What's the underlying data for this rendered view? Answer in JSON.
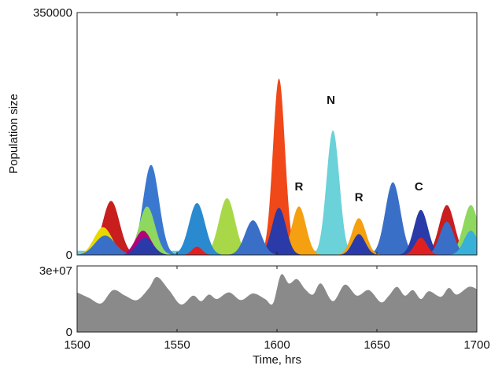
{
  "chart_data": [
    {
      "type": "area",
      "stacked": true,
      "ylabel": "Population size",
      "xlim": [
        1500,
        1700
      ],
      "ylim": [
        0,
        350000
      ],
      "y_ticks": [
        "350000",
        "0"
      ],
      "grid": false,
      "annotations": [
        {
          "text": "R",
          "x": 1611,
          "y": 93000
        },
        {
          "text": "N",
          "x": 1627,
          "y": 218000
        },
        {
          "text": "R",
          "x": 1641,
          "y": 78000
        },
        {
          "text": "C",
          "x": 1671,
          "y": 93000
        }
      ],
      "peaks": [
        {
          "color": "#c81e1e",
          "x": 1517,
          "height": 78000,
          "width": 4.2
        },
        {
          "color": "#e8d800",
          "x": 1513,
          "height": 40000,
          "width": 4.5
        },
        {
          "color": "#3a6fc8",
          "x": 1514,
          "height": 28000,
          "width": 5.0
        },
        {
          "color": "#3a78d0",
          "x": 1537,
          "height": 130000,
          "width": 4.0
        },
        {
          "color": "#8fd860",
          "x": 1535,
          "height": 70000,
          "width": 4.0
        },
        {
          "color": "#b4007a",
          "x": 1533,
          "height": 35000,
          "width": 4.0
        },
        {
          "color": "#2a3aa8",
          "x": 1534,
          "height": 25000,
          "width": 4.0
        },
        {
          "color": "#e02020",
          "x": 1560,
          "height": 12000,
          "width": 2.5
        },
        {
          "color": "#2a8ad0",
          "x": 1560,
          "height": 75000,
          "width": 4.0
        },
        {
          "color": "#a8d848",
          "x": 1575,
          "height": 82000,
          "width": 4.0
        },
        {
          "color": "#3a6fc8",
          "x": 1588,
          "height": 50000,
          "width": 4.0
        },
        {
          "color": "#f04818",
          "x": 1601,
          "height": 255000,
          "width": 3.0
        },
        {
          "color": "#2a3aa8",
          "x": 1601,
          "height": 68000,
          "width": 3.5
        },
        {
          "color": "#f5a010",
          "x": 1611,
          "height": 70000,
          "width": 3.5
        },
        {
          "color": "#6ad2d8",
          "x": 1628,
          "height": 180000,
          "width": 3.2
        },
        {
          "color": "#f5a010",
          "x": 1641,
          "height": 53000,
          "width": 3.5
        },
        {
          "color": "#2a3aa8",
          "x": 1641,
          "height": 30000,
          "width": 3.2
        },
        {
          "color": "#3a6fc8",
          "x": 1658,
          "height": 105000,
          "width": 3.8
        },
        {
          "color": "#2a3aa8",
          "x": 1672,
          "height": 65000,
          "width": 3.5
        },
        {
          "color": "#e02020",
          "x": 1672,
          "height": 25000,
          "width": 3.0
        },
        {
          "color": "#c81e1e",
          "x": 1685,
          "height": 72000,
          "width": 3.8
        },
        {
          "color": "#3a6fc8",
          "x": 1685,
          "height": 48000,
          "width": 3.5
        },
        {
          "color": "#8fd860",
          "x": 1697,
          "height": 72000,
          "width": 3.8
        },
        {
          "color": "#38b0d8",
          "x": 1697,
          "height": 35000,
          "width": 3.5
        }
      ],
      "baseline": {
        "color": "#6ad2d8",
        "value": 6000
      }
    },
    {
      "type": "area",
      "xlabel": "Time, hrs",
      "xlim": [
        1500,
        1700
      ],
      "ylim": [
        0,
        30000000
      ],
      "y_ticks": [
        "3e+07",
        "0"
      ],
      "x_ticks": [
        "1500",
        "1550",
        "1600",
        "1650",
        "1700"
      ],
      "x_tick_values": [
        1500,
        1550,
        1600,
        1650,
        1700
      ],
      "fill_color": "#8a8a8a",
      "x": [
        1500,
        1506,
        1512,
        1518,
        1524,
        1530,
        1536,
        1540,
        1546,
        1552,
        1558,
        1562,
        1566,
        1570,
        1576,
        1582,
        1588,
        1594,
        1598,
        1602,
        1606,
        1610,
        1614,
        1618,
        1622,
        1628,
        1634,
        1640,
        1646,
        1652,
        1656,
        1660,
        1664,
        1668,
        1672,
        1676,
        1682,
        1686,
        1690,
        1696,
        1700
      ],
      "values": [
        18000000,
        15500000,
        13000000,
        19000000,
        16500000,
        14500000,
        20000000,
        25000000,
        19000000,
        12500000,
        16500000,
        14000000,
        17000000,
        15000000,
        18000000,
        14500000,
        17500000,
        15000000,
        13000000,
        26000000,
        22000000,
        24000000,
        19500000,
        17000000,
        22000000,
        14000000,
        21500000,
        16500000,
        19000000,
        13500000,
        16500000,
        20500000,
        16500000,
        19000000,
        15000000,
        18500000,
        16000000,
        20000000,
        17000000,
        20500000,
        19500000
      ]
    }
  ]
}
